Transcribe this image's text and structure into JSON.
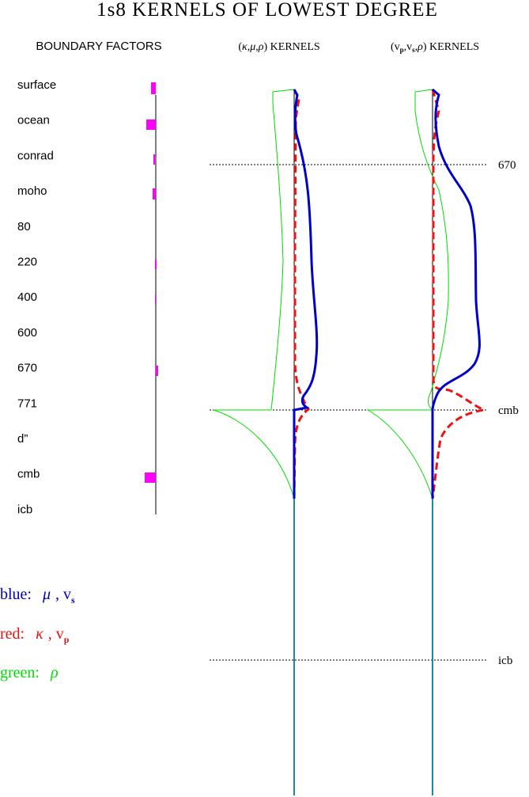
{
  "header": {
    "title": "1s8 KERNELS OF LOWEST DEGREE",
    "boundary_heading": "BOUNDARY FACTORS",
    "column_1": [
      "(",
      "κ",
      ",",
      "μ",
      ",",
      "ρ",
      ")  KERNELS"
    ],
    "column_2": [
      "(v",
      "p",
      ",v",
      "s",
      ",",
      "ρ",
      ")  KERNELS"
    ]
  },
  "boundaries": [
    "surface",
    "ocean",
    "conrad",
    "moho",
    "80",
    "220",
    "400",
    "600",
    "670",
    "771",
    "d”",
    "cmb",
    "icb"
  ],
  "depth_markers": [
    "670",
    "cmb",
    "icb"
  ],
  "legend": {
    "blue": [
      "blue:",
      "μ",
      ", v",
      "s"
    ],
    "red": [
      "red:",
      "κ",
      ", v",
      "p"
    ],
    "green": [
      "green:",
      "ρ"
    ]
  }
}
